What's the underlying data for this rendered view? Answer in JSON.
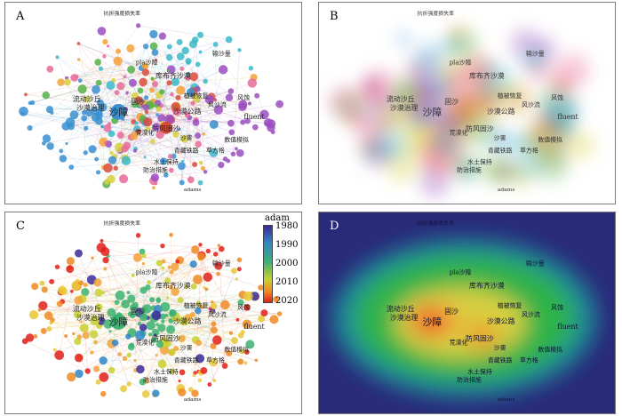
{
  "panels": {
    "A": "A",
    "B": "B",
    "C": "C",
    "D": "D"
  },
  "legend": {
    "title": "adam",
    "ticks": [
      "1980",
      "1990",
      "2000",
      "2010",
      "2020"
    ]
  },
  "labels": {
    "top": "抗折强度损失率",
    "drift": "沙障",
    "qinghai": "青藏铁路",
    "fluent": "fluent",
    "adams": "adams",
    "pla": "pla沙障",
    "l1": "流动沙丘",
    "l2": "沙漠治理",
    "l3": "防风固沙",
    "l4": "沙漠公路",
    "l5": "库布齐沙漠",
    "l6": "植被恢复",
    "l7": "固沙",
    "l8": "风沙流",
    "l9": "荒漠化",
    "l10": "水土保持",
    "l11": "防治措施",
    "l12": "输沙量",
    "l13": "沙害",
    "l14": "数值模拟",
    "l15": "草方格",
    "l16": "风蚀"
  },
  "colors": {
    "A_green": "#56b04a",
    "A_blue": "#3a8fd0",
    "A_red": "#d94c3a",
    "A_orange": "#f2a23a",
    "A_purple": "#9a4fc0",
    "A_teal": "#3cb8c8",
    "A_yellow": "#d8d040",
    "A_pink": "#e86a9a",
    "D_bg": "#2a2a7a",
    "D_green": "#2fb24a",
    "D_red": "#e8281c"
  }
}
